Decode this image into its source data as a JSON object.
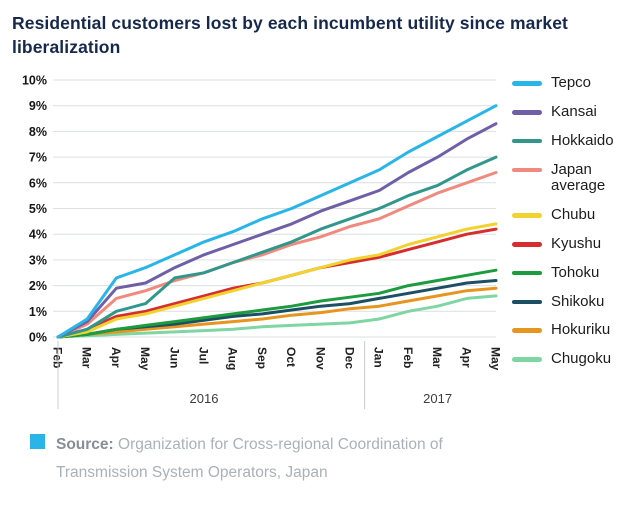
{
  "title": "Residential customers lost by each incumbent utility since market liberalization",
  "source": {
    "label": "Source:",
    "text": " Organization for Cross-regional Coordination of Transmission System Operators, Japan",
    "bullet_color": "#2bb4e8"
  },
  "chart_data": {
    "type": "line",
    "x": [
      "Feb",
      "Mar",
      "Apr",
      "May",
      "Jun",
      "Jul",
      "Aug",
      "Sep",
      "Oct",
      "Nov",
      "Dec",
      "Jan",
      "Feb",
      "Mar",
      "Apr",
      "May"
    ],
    "year_groups": [
      {
        "label": "2016",
        "start": 0,
        "end": 10
      },
      {
        "label": "2017",
        "start": 11,
        "end": 15
      }
    ],
    "ylim": [
      0,
      10
    ],
    "y_tick_step": 1,
    "y_tick_suffix": "%",
    "grid": true,
    "legend_position": "right",
    "grid_color": "#dcdfe2",
    "series": [
      {
        "name": "Tepco",
        "color": "#29b5e8",
        "values": [
          0,
          0.7,
          2.3,
          2.7,
          3.2,
          3.7,
          4.1,
          4.6,
          5.0,
          5.5,
          6.0,
          6.5,
          7.2,
          7.8,
          8.4,
          9.0
        ]
      },
      {
        "name": "Kansai",
        "color": "#6f5fa7",
        "values": [
          0,
          0.6,
          1.9,
          2.1,
          2.7,
          3.2,
          3.6,
          4.0,
          4.4,
          4.9,
          5.3,
          5.7,
          6.4,
          7.0,
          7.7,
          8.3
        ]
      },
      {
        "name": "Hokkaido",
        "color": "#31978c",
        "values": [
          0,
          0.3,
          1.0,
          1.3,
          2.3,
          2.5,
          2.9,
          3.3,
          3.7,
          4.2,
          4.6,
          5.0,
          5.5,
          5.9,
          6.5,
          7.0
        ]
      },
      {
        "name": "Japan average",
        "color": "#f18a7e",
        "values": [
          0,
          0.5,
          1.5,
          1.8,
          2.2,
          2.5,
          2.9,
          3.2,
          3.6,
          3.9,
          4.3,
          4.6,
          5.1,
          5.6,
          6.0,
          6.4
        ]
      },
      {
        "name": "Chubu",
        "color": "#f2d22e",
        "values": [
          0,
          0.2,
          0.7,
          0.9,
          1.2,
          1.5,
          1.8,
          2.1,
          2.4,
          2.7,
          3.0,
          3.2,
          3.6,
          3.9,
          4.2,
          4.4
        ]
      },
      {
        "name": "Kyushu",
        "color": "#d62e2e",
        "values": [
          0,
          0.3,
          0.8,
          1.0,
          1.3,
          1.6,
          1.9,
          2.1,
          2.4,
          2.7,
          2.9,
          3.1,
          3.4,
          3.7,
          4.0,
          4.2
        ]
      },
      {
        "name": "Tohoku",
        "color": "#1d9b3f",
        "values": [
          0,
          0.1,
          0.3,
          0.45,
          0.6,
          0.75,
          0.9,
          1.05,
          1.2,
          1.4,
          1.55,
          1.7,
          2.0,
          2.2,
          2.4,
          2.6
        ]
      },
      {
        "name": "Shikoku",
        "color": "#1c4f63",
        "values": [
          0,
          0.1,
          0.3,
          0.4,
          0.5,
          0.65,
          0.8,
          0.9,
          1.05,
          1.2,
          1.3,
          1.5,
          1.7,
          1.9,
          2.1,
          2.2
        ]
      },
      {
        "name": "Hokuriku",
        "color": "#e6951f",
        "values": [
          0,
          0.1,
          0.2,
          0.3,
          0.4,
          0.5,
          0.6,
          0.7,
          0.85,
          0.95,
          1.1,
          1.2,
          1.4,
          1.6,
          1.8,
          1.9
        ]
      },
      {
        "name": "Chugoku",
        "color": "#7fd6a2",
        "values": [
          0,
          0.05,
          0.1,
          0.15,
          0.2,
          0.25,
          0.3,
          0.4,
          0.45,
          0.5,
          0.55,
          0.7,
          1.0,
          1.2,
          1.5,
          1.6
        ]
      }
    ]
  }
}
